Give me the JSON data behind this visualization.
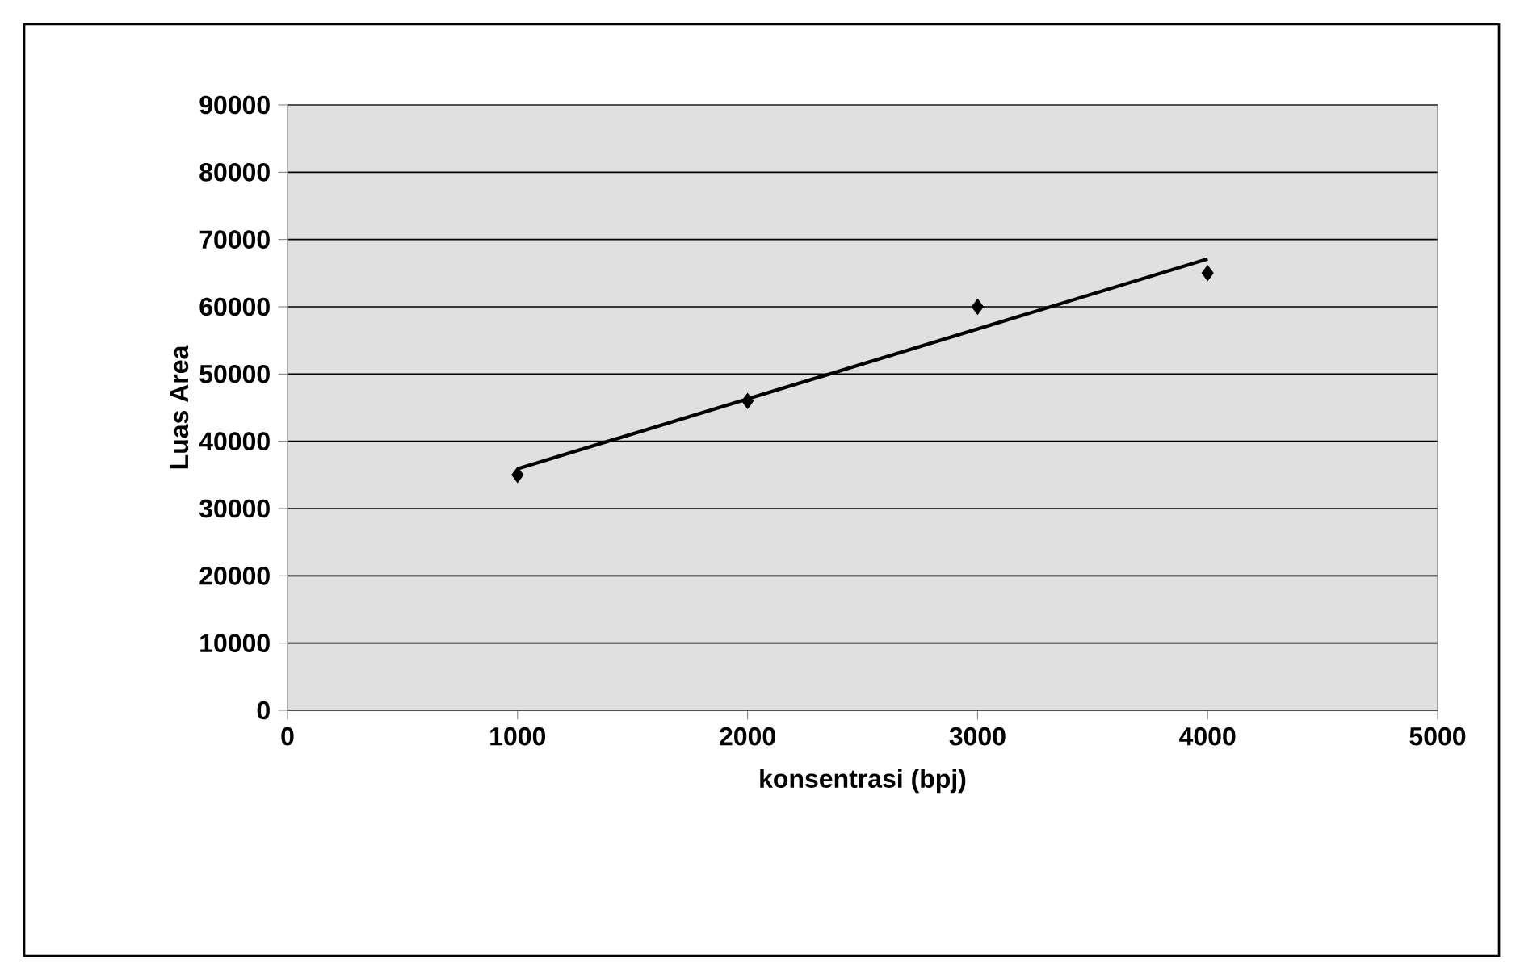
{
  "chart_data": {
    "type": "scatter",
    "xlabel": "konsentrasi (bpj)",
    "ylabel": "Luas Area",
    "xlim": [
      0,
      5000
    ],
    "ylim": [
      0,
      90000
    ],
    "xticks": [
      0,
      1000,
      2000,
      3000,
      4000,
      5000
    ],
    "yticks": [
      0,
      10000,
      20000,
      30000,
      40000,
      50000,
      60000,
      70000,
      80000,
      90000
    ],
    "grid": "y",
    "series": [
      {
        "marker": "diamond",
        "color": "#000000",
        "x": [
          1000,
          2000,
          3000,
          4000
        ],
        "values": [
          35000,
          46000,
          60000,
          65000
        ]
      },
      {
        "type": "line",
        "marker": "none",
        "line_style": "solid",
        "color": "#000000",
        "x": [
          1000,
          4000
        ],
        "values": [
          35900,
          67100
        ]
      }
    ]
  }
}
